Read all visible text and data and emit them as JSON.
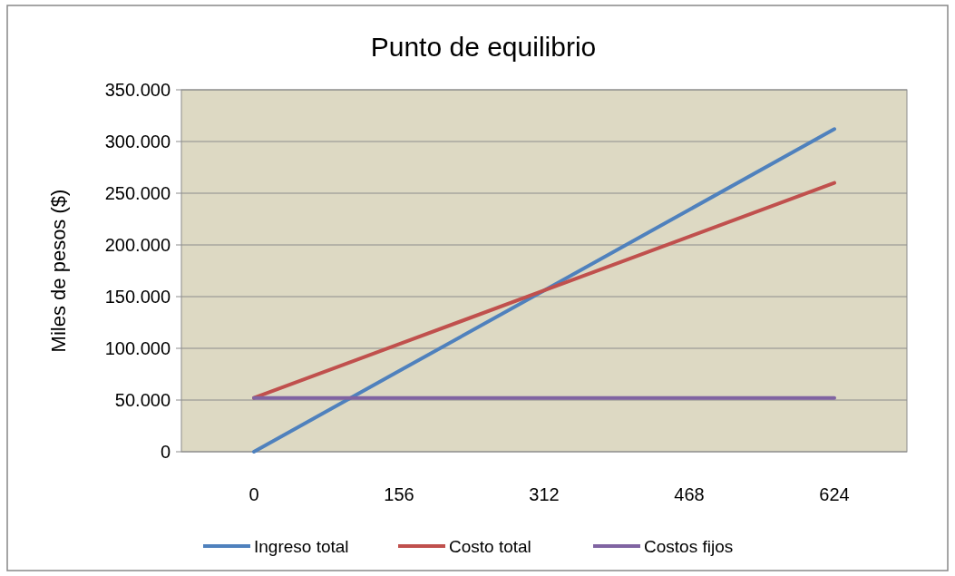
{
  "chart_data": {
    "type": "line",
    "title": "Punto de equilibrio",
    "ylabel": "Miles de pesos ($)",
    "categories": [
      "0",
      "156",
      "312",
      "468",
      "624"
    ],
    "series": [
      {
        "name": "Ingreso total",
        "color": "#4f81bd",
        "values": [
          0,
          78000,
          156000,
          234000,
          312000
        ]
      },
      {
        "name": "Costo total",
        "color": "#c0504d",
        "values": [
          52000,
          104000,
          156000,
          208000,
          260000
        ]
      },
      {
        "name": "Costos fijos",
        "color": "#8064a2",
        "values": [
          52000,
          52000,
          52000,
          52000,
          52000
        ]
      }
    ],
    "ylim": [
      0,
      350000
    ],
    "yticks": [
      0,
      {
        "value": 50000,
        "label": "50.000"
      },
      {
        "value": 100000,
        "label": "100.000"
      },
      {
        "value": 150000,
        "label": "150.000"
      },
      {
        "value": 200000,
        "label": "200.000"
      },
      {
        "value": 250000,
        "label": "250.000"
      },
      {
        "value": 300000,
        "label": "300.000"
      },
      {
        "value": 350000,
        "label": "350.000"
      }
    ],
    "grid": "y",
    "legend": "bottom",
    "marker": "none",
    "line_style": "solid"
  }
}
